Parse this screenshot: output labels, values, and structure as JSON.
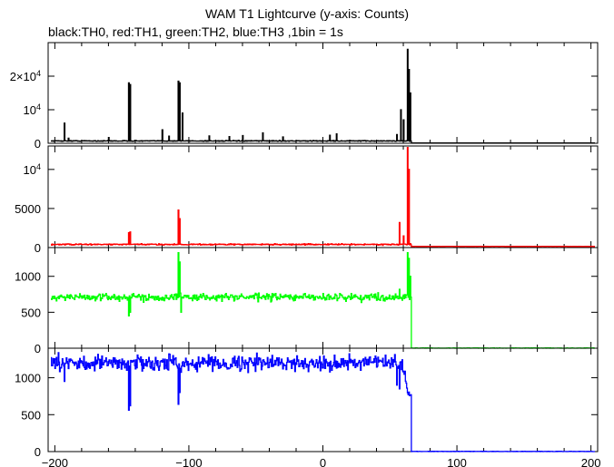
{
  "title": "WAM T1 Lightcurve (y-axis: Counts)",
  "subtitle": "black:TH0, red:TH1, green:TH2, blue:TH3 ,1bin = 1s",
  "chart_data": {
    "type": "line",
    "xlim": [
      -205,
      205
    ],
    "x_ticks": [
      -200,
      -100,
      0,
      100,
      200
    ],
    "x_tick_labels": [
      "−200",
      "−100",
      "0",
      "100",
      "200"
    ],
    "grid": false,
    "panels": [
      {
        "name": "TH0",
        "color": "#000000",
        "ylim": [
          0,
          30000
        ],
        "y_ticks": [
          {
            "value": 0,
            "label": "0"
          },
          {
            "value": 10000,
            "label": "10",
            "exp": "4"
          },
          {
            "value": 20000,
            "label": "2×10",
            "exp": "4"
          }
        ],
        "baseline": 700,
        "noise": 60,
        "spikes": [
          [
            -193.5,
            6000
          ],
          [
            -190,
            1500
          ],
          [
            -160,
            1700
          ],
          [
            -145,
            18000
          ],
          [
            -144,
            17500
          ],
          [
            -120,
            4000
          ],
          [
            -115,
            2100
          ],
          [
            -108,
            18500
          ],
          [
            -107,
            18000
          ],
          [
            -105,
            9000
          ],
          [
            -85,
            2200
          ],
          [
            -70,
            2000
          ],
          [
            -60,
            2300
          ],
          [
            -45,
            3100
          ],
          [
            -30,
            1900
          ],
          [
            5,
            2400
          ],
          [
            10,
            2800
          ],
          [
            55,
            2600
          ],
          [
            58,
            10000
          ],
          [
            60,
            7000
          ],
          [
            63,
            28000
          ],
          [
            64,
            22000
          ],
          [
            65,
            15000
          ]
        ],
        "drop": {
          "x": 66,
          "after": 80
        }
      },
      {
        "name": "TH1",
        "color": "#ff0000",
        "ylim": [
          0,
          13000
        ],
        "y_ticks": [
          {
            "value": 0,
            "label": "0"
          },
          {
            "value": 5000,
            "label": "5000"
          },
          {
            "value": 10000,
            "label": "10",
            "exp": "4"
          }
        ],
        "baseline": 400,
        "noise": 40,
        "spikes": [
          [
            -145,
            1900
          ],
          [
            -144,
            2000
          ],
          [
            -108,
            4800
          ],
          [
            -107,
            3700
          ],
          [
            57,
            3200
          ],
          [
            60,
            1500
          ],
          [
            63,
            12800
          ],
          [
            64,
            10000
          ]
        ],
        "drop": {
          "x": 66,
          "after": 140
        }
      },
      {
        "name": "TH2",
        "color": "#00ff00",
        "ylim": [
          0,
          1400
        ],
        "y_ticks": [
          {
            "value": 0,
            "label": "0"
          },
          {
            "value": 500,
            "label": "500"
          },
          {
            "value": 1000,
            "label": "1000"
          }
        ],
        "baseline": 710,
        "noise": 25,
        "spikes": [
          [
            -145,
            450
          ],
          [
            -144,
            500
          ],
          [
            -108,
            1330
          ],
          [
            -107,
            1200
          ],
          [
            -106,
            500
          ],
          [
            57,
            820
          ],
          [
            63,
            1330
          ],
          [
            64,
            1250
          ],
          [
            65,
            1000
          ]
        ],
        "drop": {
          "x": 66,
          "after": 0
        }
      },
      {
        "name": "TH3",
        "color": "#0000ff",
        "ylim": [
          0,
          1400
        ],
        "y_ticks": [
          {
            "value": 0,
            "label": "0"
          },
          {
            "value": 500,
            "label": "500"
          },
          {
            "value": 1000,
            "label": "1000"
          }
        ],
        "baseline": 1200,
        "noise": 50,
        "spikes": [
          [
            -193,
            950
          ],
          [
            -145,
            560
          ],
          [
            -144,
            620
          ],
          [
            -108,
            640
          ],
          [
            -107,
            800
          ],
          [
            55,
            900
          ],
          [
            57,
            850
          ]
        ],
        "drop": {
          "x": 66,
          "after": 0
        }
      }
    ]
  }
}
